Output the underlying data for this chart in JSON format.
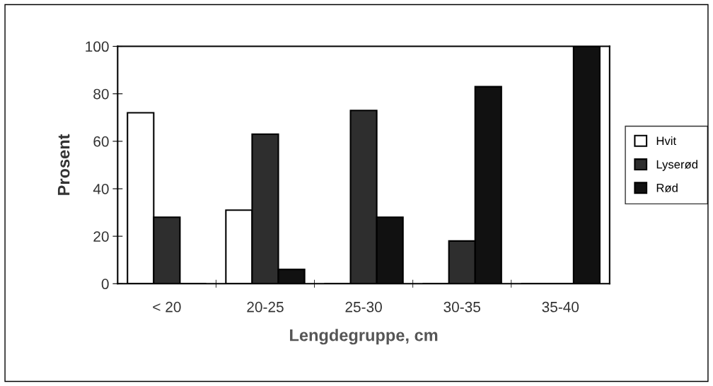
{
  "chart_data": {
    "type": "bar",
    "xlabel": "Lengdegruppe, cm",
    "ylabel": "Prosent",
    "categories": [
      "< 20",
      "20-25",
      "25-30",
      "30-35",
      "35-40"
    ],
    "series": [
      {
        "name": "Hvit",
        "color": "#ffffff",
        "values": [
          72,
          31,
          0,
          0,
          0
        ]
      },
      {
        "name": "Lyserød",
        "color": "#2e2e2e",
        "values": [
          28,
          63,
          73,
          18,
          0
        ]
      },
      {
        "name": "Rød",
        "color": "#111111",
        "values": [
          0,
          6,
          28,
          83,
          100
        ]
      }
    ],
    "ylim": [
      0,
      100
    ],
    "yticks": [
      0,
      20,
      40,
      60,
      80,
      100
    ],
    "grid": false,
    "legend": "right"
  }
}
